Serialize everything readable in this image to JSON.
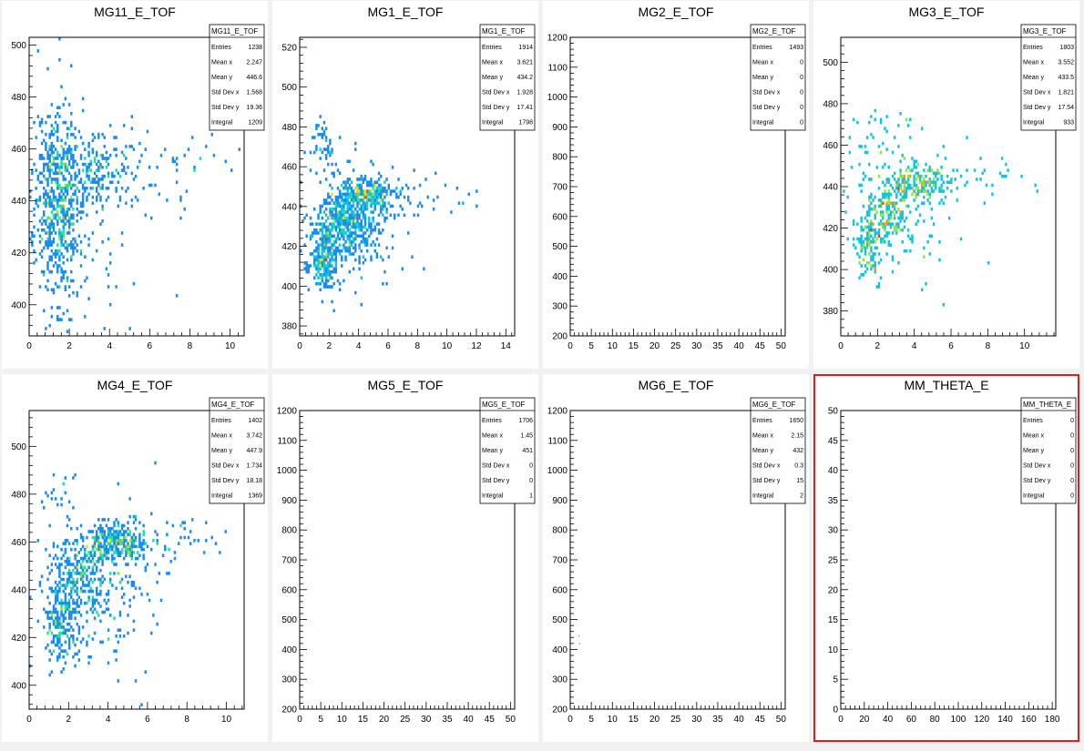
{
  "canvas": {
    "selected_pad": 7,
    "selection_color": "#e31a1c"
  },
  "palette": [
    "#2424e6",
    "#1e5aff",
    "#1a8cf0",
    "#13c4e0",
    "#22e0a0",
    "#8ee83a",
    "#d8e02a",
    "#f0a01a",
    "#e0401a"
  ],
  "chart_data": [
    {
      "type": "heatmap",
      "title": "MG11_E_TOF",
      "xlim": [
        0,
        10.7
      ],
      "ylim": [
        388,
        503
      ],
      "xticks": [
        0,
        2,
        4,
        6,
        8,
        10
      ],
      "yticks": [
        400,
        420,
        440,
        460,
        480,
        500
      ],
      "stats": {
        "name": "MG11_E_TOF",
        "Entries": "1238",
        "Mean x": "2.247",
        "Mean y": "446.6",
        "Std Dev x": "1.568",
        "Std Dev y": "19.36",
        "Integral": "1209"
      },
      "blobs": [
        {
          "cx": 1.4,
          "cy": 440,
          "sx": 0.55,
          "sy": 20,
          "n": 520
        },
        {
          "cx": 2.9,
          "cy": 452,
          "sx": 1.0,
          "sy": 7,
          "n": 220
        },
        {
          "cx": 5.0,
          "cy": 452,
          "sx": 1.6,
          "sy": 10,
          "n": 60
        },
        {
          "cx": 2.5,
          "cy": 430,
          "sx": 1.6,
          "sy": 16,
          "n": 110
        },
        {
          "cx": 8.0,
          "cy": 455,
          "sx": 1.2,
          "sy": 5,
          "n": 12
        }
      ],
      "seed": 11
    },
    {
      "type": "heatmap",
      "title": "MG1_E_TOF",
      "xlim": [
        0,
        14.6
      ],
      "ylim": [
        375,
        525
      ],
      "xticks": [
        0,
        2,
        4,
        6,
        8,
        10,
        12,
        14
      ],
      "yticks": [
        380,
        400,
        420,
        440,
        460,
        480,
        500,
        520
      ],
      "stats": {
        "name": "MG1_E_TOF",
        "Entries": "1914",
        "Mean x": "3.621",
        "Mean y": "434.2",
        "Std Dev x": "1.928",
        "Std Dev y": "17.41",
        "Integral": "1798"
      },
      "blobs": [
        {
          "cx": 1.7,
          "cy": 415,
          "sx": 0.45,
          "sy": 9,
          "n": 260
        },
        {
          "cx": 3.0,
          "cy": 432,
          "sx": 0.8,
          "sy": 8,
          "n": 330
        },
        {
          "cx": 4.6,
          "cy": 446,
          "sx": 0.9,
          "sy": 4,
          "n": 300
        },
        {
          "cx": 3.6,
          "cy": 428,
          "sx": 1.8,
          "sy": 15,
          "n": 260
        },
        {
          "cx": 1.6,
          "cy": 470,
          "sx": 0.4,
          "sy": 7,
          "n": 45
        },
        {
          "cx": 7.5,
          "cy": 445,
          "sx": 2.0,
          "sy": 5,
          "n": 45
        }
      ],
      "seed": 21
    },
    {
      "type": "heatmap",
      "title": "MG2_E_TOF",
      "xlim": [
        0,
        51
      ],
      "ylim": [
        200,
        1200
      ],
      "xticks": [
        0,
        5,
        10,
        15,
        20,
        25,
        30,
        35,
        40,
        45,
        50
      ],
      "yticks": [
        200,
        300,
        400,
        500,
        600,
        700,
        800,
        900,
        1000,
        1100,
        1200
      ],
      "stats": {
        "name": "MG2_E_TOF",
        "Entries": "1493",
        "Mean x": "0",
        "Mean y": "0",
        "Std Dev x": "0",
        "Std Dev y": "0",
        "Integral": "0"
      },
      "blobs": [],
      "seed": 31
    },
    {
      "type": "heatmap",
      "title": "MG3_E_TOF",
      "xlim": [
        0,
        11.7
      ],
      "ylim": [
        368,
        512
      ],
      "xticks": [
        0,
        2,
        4,
        6,
        8,
        10
      ],
      "yticks": [
        380,
        400,
        420,
        440,
        460,
        480,
        500
      ],
      "stats": {
        "name": "MG3_E_TOF",
        "Entries": "1803",
        "Mean x": "3.552",
        "Mean y": "433.5",
        "Std Dev x": "1.821",
        "Std Dev y": "17.54",
        "Integral": "933"
      },
      "blobs": [
        {
          "cx": 1.6,
          "cy": 412,
          "sx": 0.4,
          "sy": 8,
          "n": 130
        },
        {
          "cx": 2.6,
          "cy": 428,
          "sx": 0.6,
          "sy": 8,
          "n": 160
        },
        {
          "cx": 4.0,
          "cy": 442,
          "sx": 0.9,
          "sy": 5,
          "n": 180
        },
        {
          "cx": 3.5,
          "cy": 430,
          "sx": 1.6,
          "sy": 17,
          "n": 130
        },
        {
          "cx": 2.5,
          "cy": 465,
          "sx": 1.0,
          "sy": 8,
          "n": 35
        },
        {
          "cx": 7.5,
          "cy": 445,
          "sx": 1.8,
          "sy": 5,
          "n": 30
        }
      ],
      "seed": 41
    },
    {
      "type": "heatmap",
      "title": "MG4_E_TOF",
      "xlim": [
        0,
        10.9
      ],
      "ylim": [
        390,
        515
      ],
      "xticks": [
        0,
        2,
        4,
        6,
        8,
        10
      ],
      "yticks": [
        400,
        420,
        440,
        460,
        480,
        500
      ],
      "stats": {
        "name": "MG4_E_TOF",
        "Entries": "1402",
        "Mean x": "3.742",
        "Mean y": "447.9",
        "Std Dev x": "1.734",
        "Std Dev y": "18.18",
        "Integral": "1369"
      },
      "blobs": [
        {
          "cx": 1.6,
          "cy": 425,
          "sx": 0.45,
          "sy": 8,
          "n": 170
        },
        {
          "cx": 2.6,
          "cy": 445,
          "sx": 0.7,
          "sy": 8,
          "n": 230
        },
        {
          "cx": 4.4,
          "cy": 460,
          "sx": 0.9,
          "sy": 4,
          "n": 300
        },
        {
          "cx": 3.4,
          "cy": 440,
          "sx": 1.7,
          "sy": 17,
          "n": 220
        },
        {
          "cx": 7.3,
          "cy": 460,
          "sx": 1.5,
          "sy": 5,
          "n": 45
        },
        {
          "cx": 1.6,
          "cy": 480,
          "sx": 0.5,
          "sy": 5,
          "n": 20
        }
      ],
      "seed": 51
    },
    {
      "type": "heatmap",
      "title": "MG5_E_TOF",
      "xlim": [
        0,
        51
      ],
      "ylim": [
        200,
        1200
      ],
      "xticks": [
        0,
        5,
        10,
        15,
        20,
        25,
        30,
        35,
        40,
        45,
        50
      ],
      "yticks": [
        200,
        300,
        400,
        500,
        600,
        700,
        800,
        900,
        1000,
        1100,
        1200
      ],
      "stats": {
        "name": "MG5_E_TOF",
        "Entries": "1706",
        "Mean x": "1.45",
        "Mean y": "451",
        "Std Dev x": "0",
        "Std Dev y": "0",
        "Integral": "1"
      },
      "blobs": [],
      "seed": 61
    },
    {
      "type": "heatmap",
      "title": "MG6_E_TOF",
      "xlim": [
        0,
        51
      ],
      "ylim": [
        200,
        1200
      ],
      "xticks": [
        0,
        5,
        10,
        15,
        20,
        25,
        30,
        35,
        40,
        45,
        50
      ],
      "yticks": [
        200,
        300,
        400,
        500,
        600,
        700,
        800,
        900,
        1000,
        1100,
        1200
      ],
      "stats": {
        "name": "MG6_E_TOF",
        "Entries": "1650",
        "Mean x": "2.15",
        "Mean y": "432",
        "Std Dev x": "0.3",
        "Std Dev y": "15",
        "Integral": "2"
      },
      "points": [
        [
          2.0,
          445
        ],
        [
          2.2,
          420
        ]
      ],
      "blobs": [],
      "seed": 71
    },
    {
      "type": "heatmap",
      "title": "MM_THETA_E",
      "xlim": [
        0,
        183
      ],
      "ylim": [
        0,
        50
      ],
      "xticks": [
        0,
        20,
        40,
        60,
        80,
        100,
        120,
        140,
        160,
        180
      ],
      "yticks": [
        0,
        5,
        10,
        15,
        20,
        25,
        30,
        35,
        40,
        45,
        50
      ],
      "stats": {
        "name": "MM_THETA_E",
        "Entries": "0",
        "Mean x": "0",
        "Mean y": "0",
        "Std Dev x": "0",
        "Std Dev y": "0",
        "Integral": "0"
      },
      "blobs": [],
      "seed": 81
    }
  ]
}
